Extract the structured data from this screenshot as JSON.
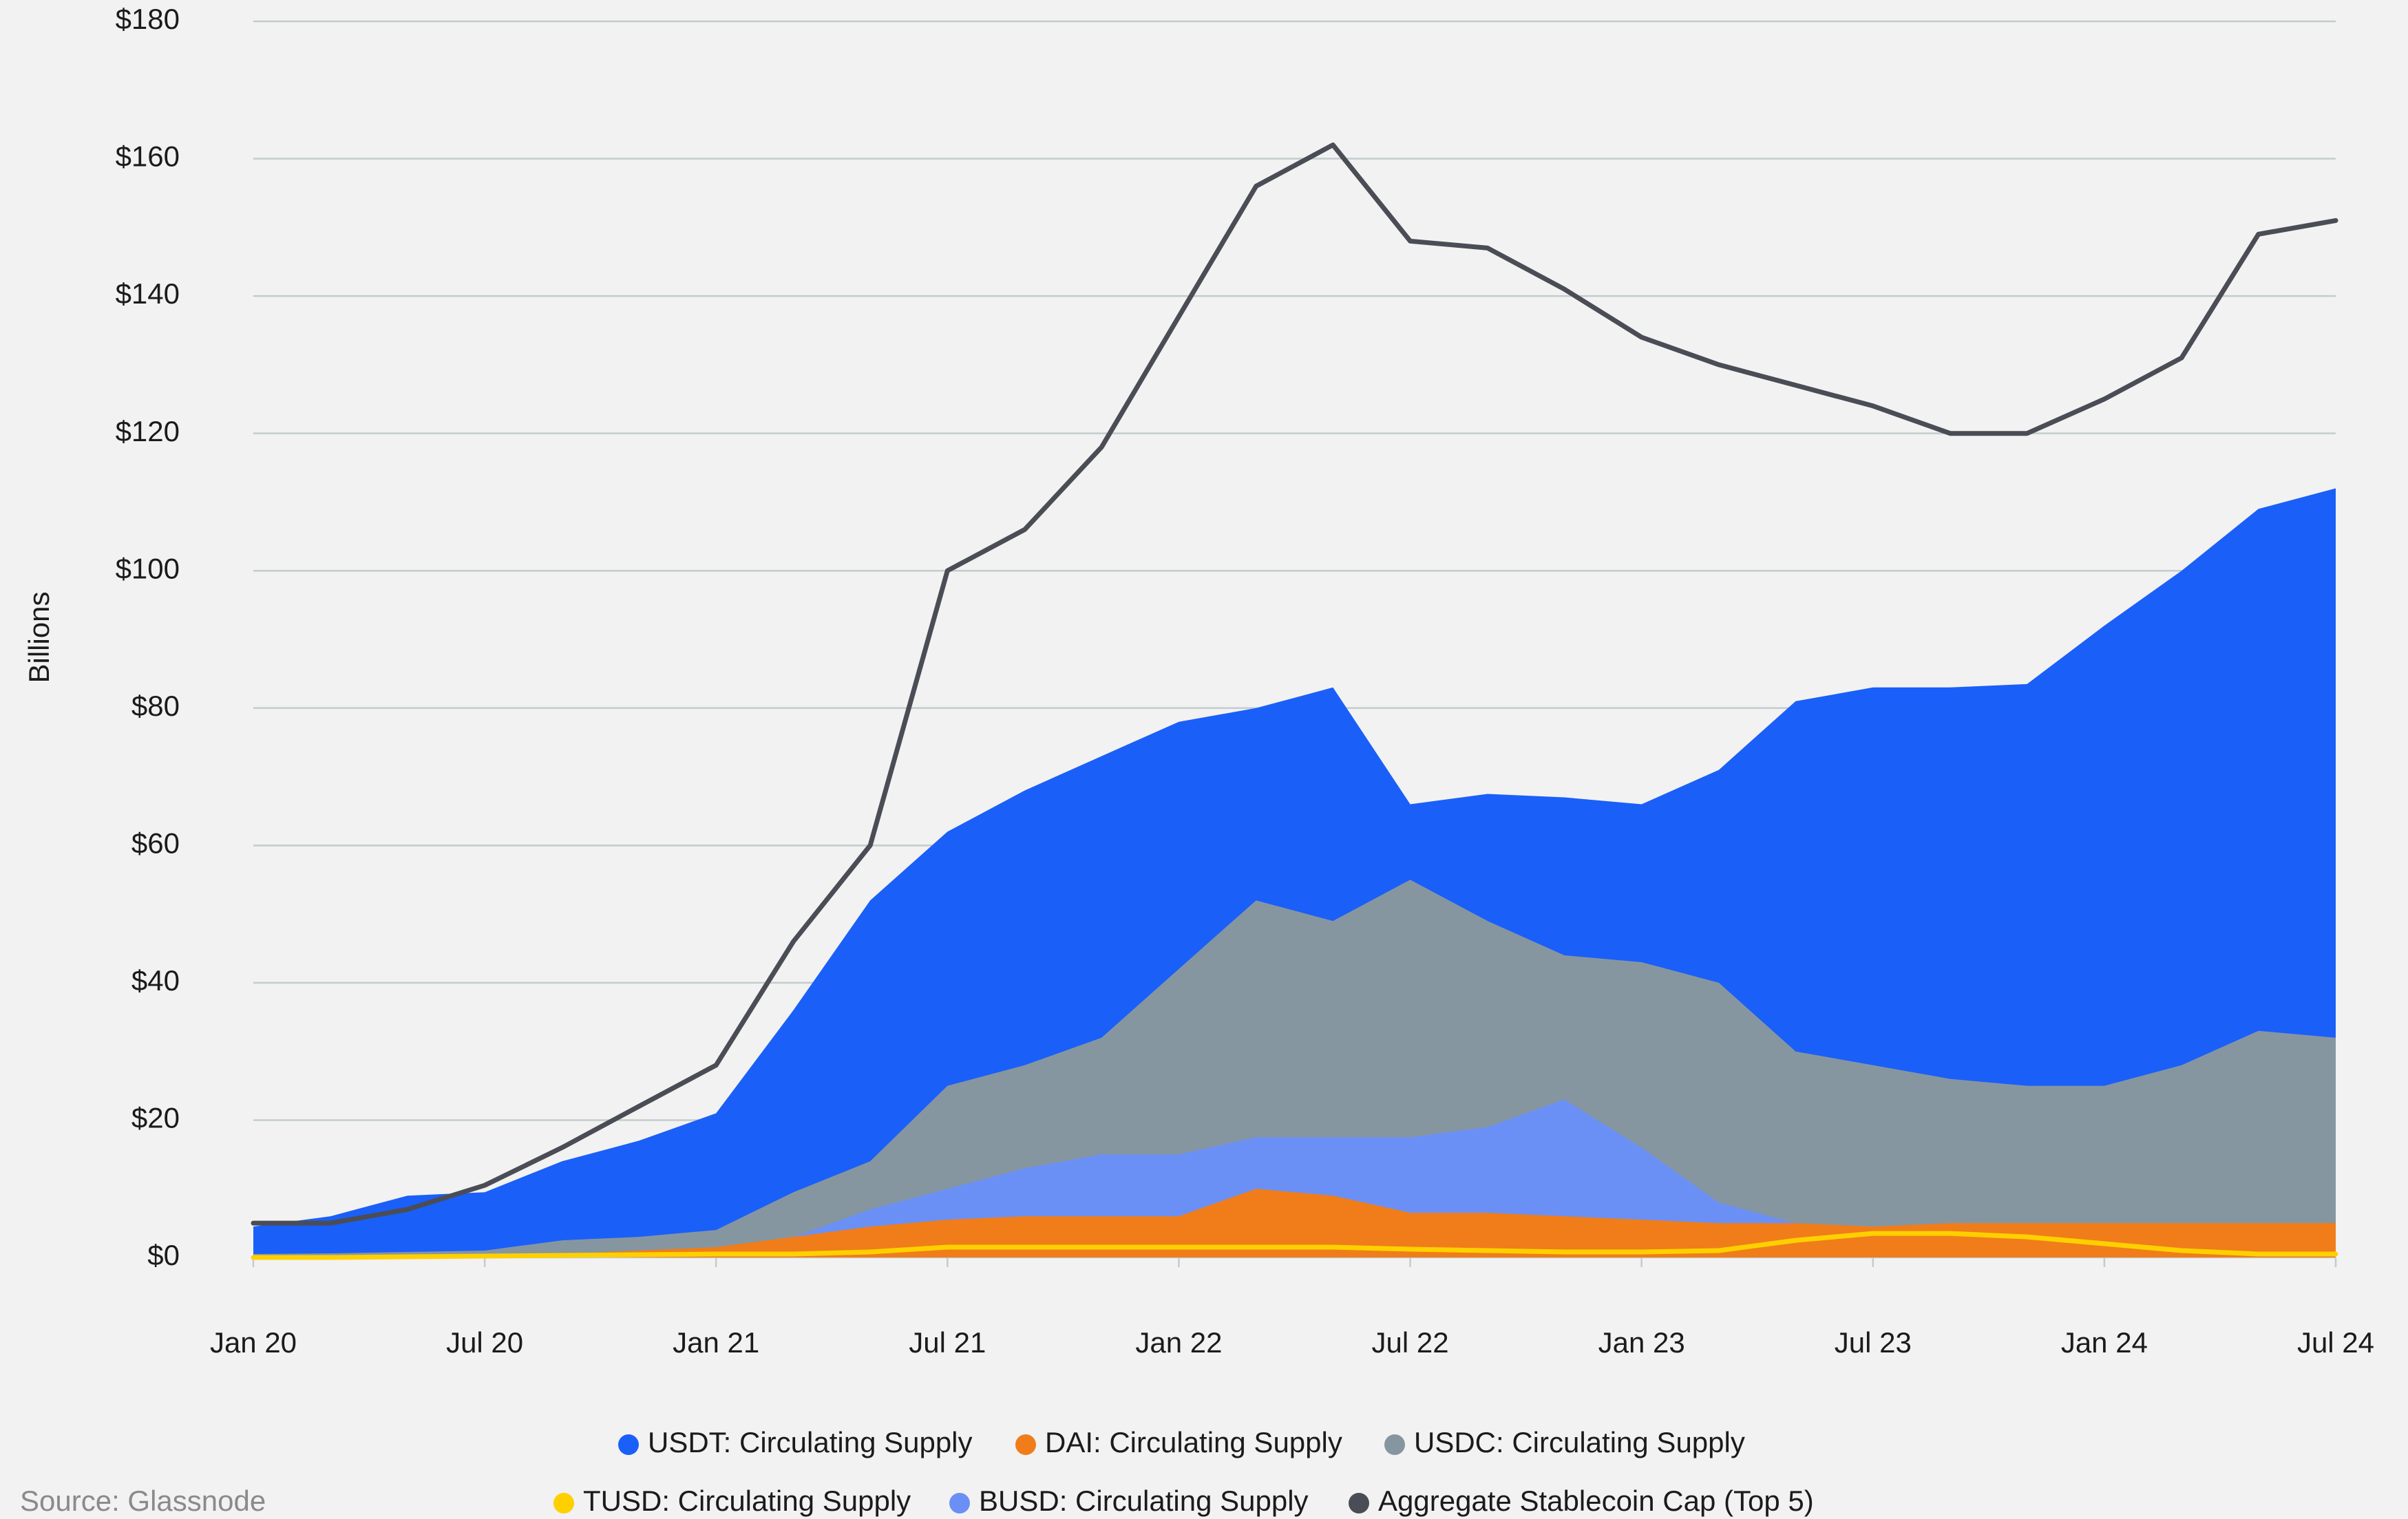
{
  "chart_data": {
    "type": "area",
    "y_label": "Billions",
    "source": "Source: Glassnode",
    "x": [
      2020,
      2020.167,
      2020.333,
      2020.5,
      2020.667,
      2020.833,
      2021,
      2021.167,
      2021.333,
      2021.5,
      2021.667,
      2021.833,
      2022,
      2022.167,
      2022.333,
      2022.5,
      2022.667,
      2022.833,
      2023,
      2023.167,
      2023.333,
      2023.5,
      2023.667,
      2023.833,
      2024,
      2024.167,
      2024.333,
      2024.5
    ],
    "xlim": [
      2020,
      2024.5
    ],
    "xticks": [
      {
        "value": 2020,
        "label": "Jan 20"
      },
      {
        "value": 2020.5,
        "label": "Jul 20"
      },
      {
        "value": 2021,
        "label": "Jan 21"
      },
      {
        "value": 2021.5,
        "label": "Jul 21"
      },
      {
        "value": 2022,
        "label": "Jan 22"
      },
      {
        "value": 2022.5,
        "label": "Jul 22"
      },
      {
        "value": 2023,
        "label": "Jan 23"
      },
      {
        "value": 2023.5,
        "label": "Jul 23"
      },
      {
        "value": 2024,
        "label": "Jan 24"
      },
      {
        "value": 2024.5,
        "label": "Jul 24"
      }
    ],
    "ylim": [
      0,
      180
    ],
    "yticks": [
      {
        "value": 0,
        "label": "$0"
      },
      {
        "value": 20,
        "label": "$20"
      },
      {
        "value": 40,
        "label": "$40"
      },
      {
        "value": 60,
        "label": "$60"
      },
      {
        "value": 80,
        "label": "$80"
      },
      {
        "value": 100,
        "label": "$100"
      },
      {
        "value": 120,
        "label": "$120"
      },
      {
        "value": 140,
        "label": "$140"
      },
      {
        "value": 160,
        "label": "$160"
      },
      {
        "value": 180,
        "label": "$180"
      }
    ],
    "grid": true,
    "legend": "bottom",
    "series": [
      {
        "name": "USDT: Circulating Supply",
        "color": "#1a5ff8",
        "kind": "area",
        "values": [
          4.5,
          6,
          9,
          9.5,
          14,
          17,
          21,
          36,
          52,
          62,
          68,
          73,
          78,
          80,
          83,
          66,
          67.5,
          67,
          66,
          71,
          81,
          83,
          83,
          83.5,
          92,
          100,
          109,
          112
        ]
      },
      {
        "name": "DAI: Circulating Supply",
        "color": "#f07d1a",
        "kind": "area",
        "values": [
          0.1,
          0.1,
          0.1,
          0.2,
          0.5,
          1,
          1.5,
          3,
          4.5,
          5.5,
          6,
          6,
          6,
          10,
          9,
          6.5,
          6.5,
          6,
          5.5,
          5,
          5,
          4.5,
          5,
          5,
          5,
          5,
          5,
          5
        ]
      },
      {
        "name": "USDC: Circulating Supply",
        "color": "#8696a0",
        "kind": "area",
        "values": [
          0.5,
          0.6,
          0.8,
          1,
          2.5,
          3,
          4,
          9.5,
          14,
          25,
          28,
          32,
          42,
          52,
          49,
          55,
          49,
          44,
          43,
          40,
          30,
          28,
          26,
          25,
          25,
          28,
          33,
          32
        ]
      },
      {
        "name": "TUSD: Circulating Supply",
        "color": "#ffd000",
        "kind": "line",
        "values": [
          0,
          0,
          0.1,
          0.2,
          0.3,
          0.4,
          0.5,
          0.5,
          0.8,
          1.5,
          1.5,
          1.5,
          1.5,
          1.5,
          1.5,
          1.2,
          1,
          0.8,
          0.8,
          1,
          2.5,
          3.5,
          3.5,
          3,
          2,
          1,
          0.5,
          0.5
        ]
      },
      {
        "name": "BUSD: Circulating Supply",
        "color": "#6b90f5",
        "kind": "area",
        "values": [
          0,
          0,
          0,
          0,
          0.2,
          0.4,
          1,
          3,
          7,
          10,
          13,
          15,
          15,
          17.5,
          17.5,
          17.5,
          19,
          23,
          16,
          8,
          5,
          3,
          2,
          1,
          0.5,
          0,
          0,
          0
        ]
      },
      {
        "name": "Aggregate Stablecoin Cap (Top 5)",
        "color": "#4a4d55",
        "kind": "line",
        "values": [
          5,
          5,
          7,
          10.5,
          16,
          22,
          28,
          46,
          60,
          100,
          106,
          118,
          137,
          156,
          162,
          148,
          147,
          141,
          134,
          130,
          127,
          124,
          120,
          120,
          125,
          131,
          149,
          151
        ]
      }
    ]
  }
}
